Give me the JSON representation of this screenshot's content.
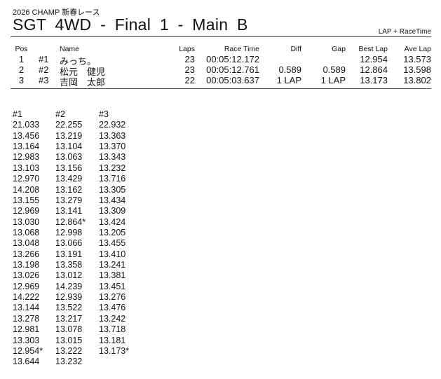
{
  "header": {
    "subtitle": "2026  CHAMP 新春レース",
    "title": "SGT  4WD  -  Final 1  -  Main B",
    "mode": "LAP + RaceTime"
  },
  "results": {
    "columns": {
      "pos": "Pos",
      "name": "Name",
      "laps": "Laps",
      "race_time": "Race Time",
      "diff": "Diff",
      "gap": "Gap",
      "best_lap": "Best Lap",
      "ave_lap": "Ave Lap"
    },
    "rows": [
      {
        "pos": "1",
        "num": "#1",
        "name": "みっち。",
        "laps": "23",
        "race_time": "00:05:12.172",
        "diff": "",
        "gap": "",
        "best_lap": "12.954",
        "ave_lap": "13.573"
      },
      {
        "pos": "2",
        "num": "#2",
        "name": "松元　健児",
        "laps": "23",
        "race_time": "00:05:12.761",
        "diff": "0.589",
        "gap": "0.589",
        "best_lap": "12.864",
        "ave_lap": "13.598"
      },
      {
        "pos": "3",
        "num": "#3",
        "name": "吉岡　太郎",
        "laps": "22",
        "race_time": "00:05:03.637",
        "diff": "1 LAP",
        "gap": "1 LAP",
        "best_lap": "13.173",
        "ave_lap": "13.802"
      }
    ]
  },
  "laps": [
    {
      "header": "#1",
      "times": [
        "21.033",
        "13.456",
        "13.164",
        "12.983",
        "13.103",
        "12.970",
        "14.208",
        "13.155",
        "12.969",
        "13.030",
        "13.068",
        "13.048",
        "13.266",
        "13.198",
        "13.026",
        "12.969",
        "14.222",
        "13.144",
        "13.278",
        "12.981",
        "13.303",
        "12.954*",
        "13.644"
      ]
    },
    {
      "header": "#2",
      "times": [
        "22.255",
        "13.219",
        "13.104",
        "13.063",
        "13.156",
        "13.429",
        "13.162",
        "13.279",
        "13.141",
        "12.864*",
        "12.998",
        "13.066",
        "13.191",
        "13.358",
        "13.012",
        "14.239",
        "12.939",
        "13.522",
        "13.217",
        "13.078",
        "13.015",
        "13.222",
        "13.232"
      ]
    },
    {
      "header": "#3",
      "times": [
        "22.932",
        "13.363",
        "13.370",
        "13.343",
        "13.232",
        "13.716",
        "13.305",
        "13.434",
        "13.309",
        "13.424",
        "13.205",
        "13.455",
        "13.410",
        "13.241",
        "13.381",
        "13.451",
        "13.276",
        "13.476",
        "13.242",
        "13.718",
        "13.181",
        "13.173*"
      ]
    }
  ]
}
